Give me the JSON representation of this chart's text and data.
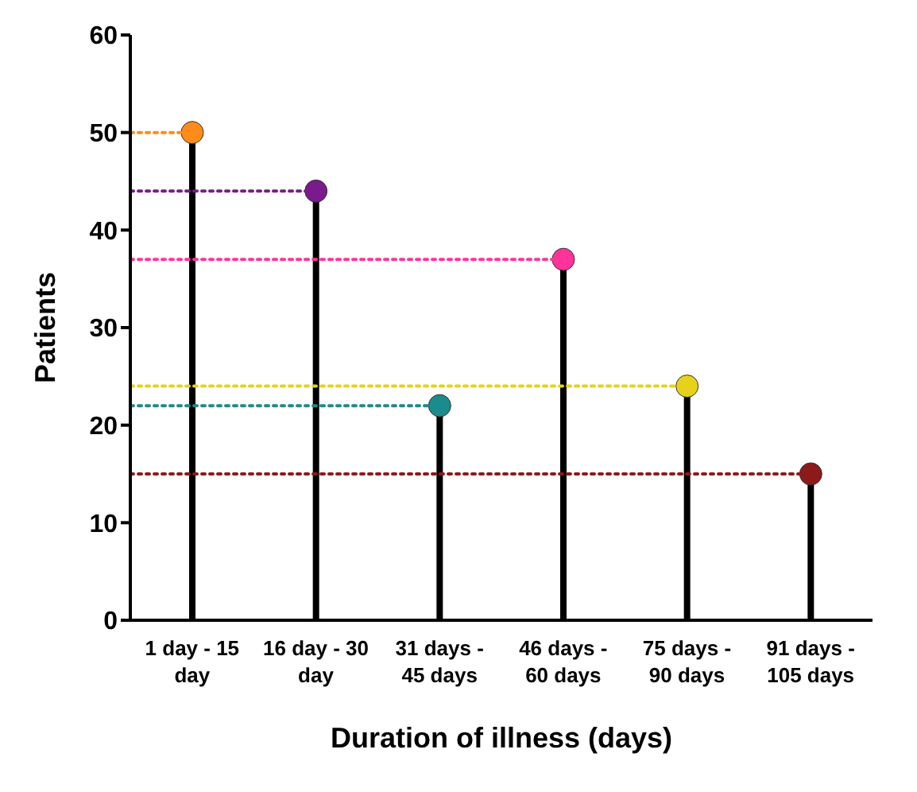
{
  "chart_data": {
    "type": "lollipop",
    "xlabel": "Duration of illness (days)",
    "ylabel": "Patients",
    "categories": [
      "1 day - 15 day",
      "16 day - 30 day",
      "31 days - 45 days",
      "46 days - 60 days",
      "75 days - 90 days",
      "91 days - 105 days"
    ],
    "values": [
      50,
      44,
      22,
      37,
      24,
      15
    ],
    "colors": [
      "#ff8c1a",
      "#7a1a8c",
      "#1a8c8c",
      "#ff3399",
      "#e6d21a",
      "#8c1a1a"
    ],
    "color": "#000000",
    "marker": "circle",
    "ref_lines": [
      {
        "axis": "y",
        "value": 50,
        "color": "#ff8c1a",
        "line_style": "dotted"
      },
      {
        "axis": "y",
        "value": 44,
        "color": "#7a1a8c",
        "line_style": "dotted"
      },
      {
        "axis": "y",
        "value": 37,
        "color": "#ff3399",
        "line_style": "dotted"
      },
      {
        "axis": "y",
        "value": 24,
        "color": "#e6d21a",
        "line_style": "dotted"
      },
      {
        "axis": "y",
        "value": 22,
        "color": "#1a8c8c",
        "line_style": "dotted"
      },
      {
        "axis": "y",
        "value": 15,
        "color": "#8c1a1a",
        "line_style": "dotted"
      }
    ],
    "ylim": [
      0,
      60
    ],
    "yticks": [
      0,
      10,
      20,
      30,
      40,
      50,
      60
    ]
  }
}
